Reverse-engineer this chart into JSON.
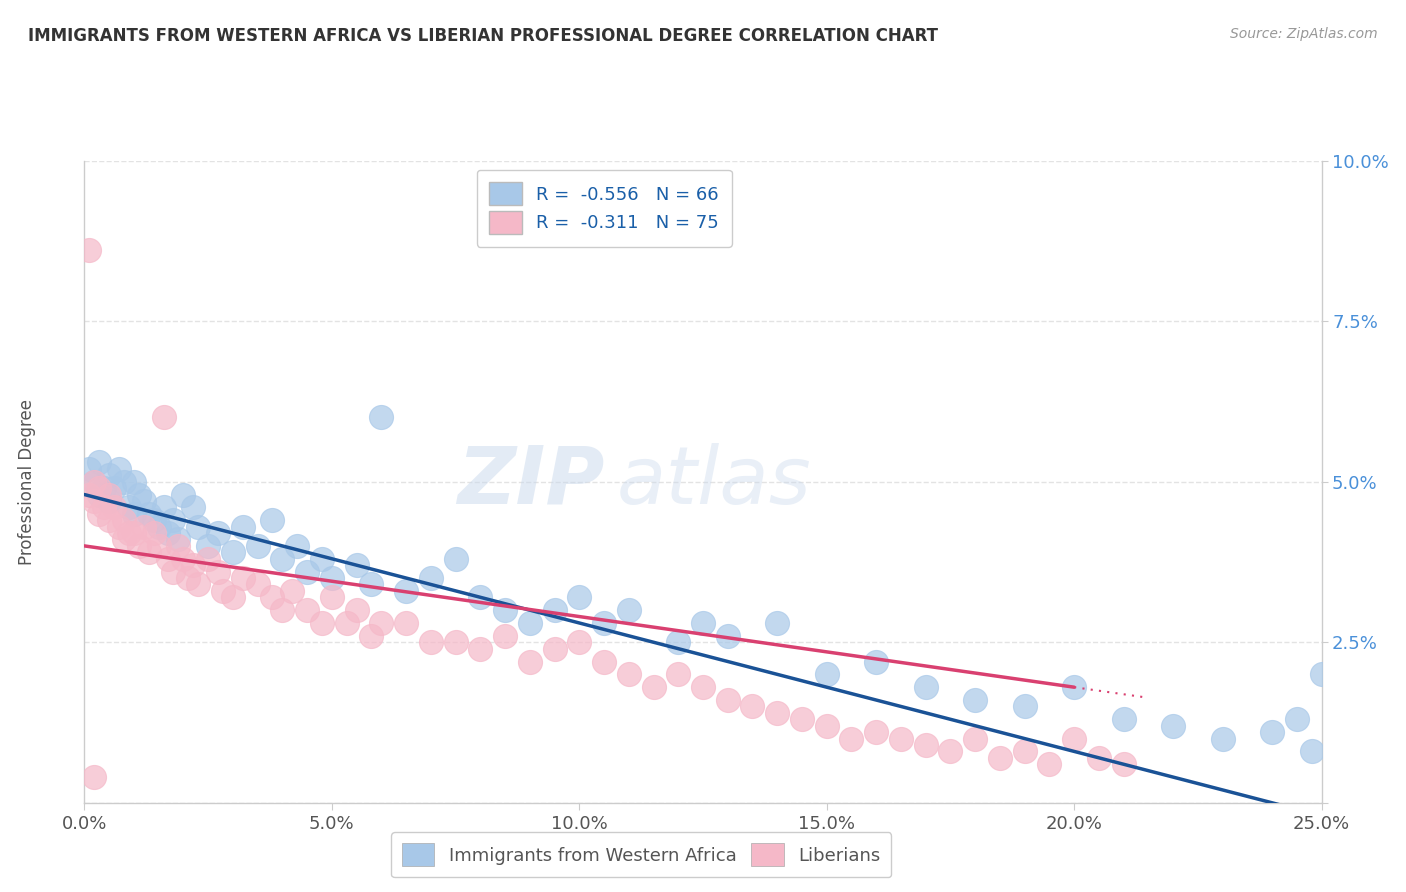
{
  "title": "IMMIGRANTS FROM WESTERN AFRICA VS LIBERIAN PROFESSIONAL DEGREE CORRELATION CHART",
  "source": "Source: ZipAtlas.com",
  "ylabel": "Professional Degree",
  "xlim": [
    0.0,
    0.25
  ],
  "ylim": [
    0.0,
    0.1
  ],
  "xticks": [
    0.0,
    0.05,
    0.1,
    0.15,
    0.2,
    0.25
  ],
  "yticks": [
    0.0,
    0.025,
    0.05,
    0.075,
    0.1
  ],
  "xticklabels": [
    "0.0%",
    "5.0%",
    "10.0%",
    "15.0%",
    "20.0%",
    "25.0%"
  ],
  "yticklabels": [
    "",
    "2.5%",
    "5.0%",
    "7.5%",
    "10.0%"
  ],
  "blue_color": "#a8c8e8",
  "pink_color": "#f5b8c8",
  "blue_line_color": "#1a5296",
  "pink_line_color": "#d94070",
  "blue_r": -0.556,
  "blue_n": 66,
  "pink_r": -0.311,
  "pink_n": 75,
  "legend_label_blue": "Immigrants from Western Africa",
  "legend_label_pink": "Liberians",
  "title_color": "#333333",
  "source_color": "#999999",
  "axis_color": "#cccccc",
  "tick_color": "#555555",
  "ytick_color": "#4a90d9",
  "background_color": "#ffffff",
  "grid_color": "#dddddd",
  "blue_scatter_x": [
    0.001,
    0.002,
    0.003,
    0.003,
    0.004,
    0.005,
    0.005,
    0.006,
    0.007,
    0.008,
    0.009,
    0.01,
    0.01,
    0.011,
    0.012,
    0.013,
    0.014,
    0.015,
    0.016,
    0.017,
    0.018,
    0.019,
    0.02,
    0.022,
    0.023,
    0.025,
    0.027,
    0.03,
    0.032,
    0.035,
    0.038,
    0.04,
    0.043,
    0.045,
    0.048,
    0.05,
    0.055,
    0.058,
    0.06,
    0.065,
    0.07,
    0.075,
    0.08,
    0.085,
    0.09,
    0.095,
    0.1,
    0.105,
    0.11,
    0.12,
    0.125,
    0.13,
    0.14,
    0.15,
    0.16,
    0.17,
    0.18,
    0.19,
    0.2,
    0.21,
    0.22,
    0.23,
    0.24,
    0.245,
    0.248,
    0.25
  ],
  "blue_scatter_y": [
    0.052,
    0.05,
    0.048,
    0.053,
    0.049,
    0.051,
    0.047,
    0.049,
    0.052,
    0.05,
    0.046,
    0.045,
    0.05,
    0.048,
    0.047,
    0.045,
    0.044,
    0.043,
    0.046,
    0.042,
    0.044,
    0.041,
    0.048,
    0.046,
    0.043,
    0.04,
    0.042,
    0.039,
    0.043,
    0.04,
    0.044,
    0.038,
    0.04,
    0.036,
    0.038,
    0.035,
    0.037,
    0.034,
    0.06,
    0.033,
    0.035,
    0.038,
    0.032,
    0.03,
    0.028,
    0.03,
    0.032,
    0.028,
    0.03,
    0.025,
    0.028,
    0.026,
    0.028,
    0.02,
    0.022,
    0.018,
    0.016,
    0.015,
    0.018,
    0.013,
    0.012,
    0.01,
    0.011,
    0.013,
    0.008,
    0.02
  ],
  "pink_scatter_x": [
    0.001,
    0.001,
    0.002,
    0.002,
    0.003,
    0.003,
    0.004,
    0.005,
    0.005,
    0.006,
    0.007,
    0.008,
    0.008,
    0.009,
    0.01,
    0.011,
    0.012,
    0.013,
    0.014,
    0.015,
    0.016,
    0.017,
    0.018,
    0.019,
    0.02,
    0.021,
    0.022,
    0.023,
    0.025,
    0.027,
    0.028,
    0.03,
    0.032,
    0.035,
    0.038,
    0.04,
    0.042,
    0.045,
    0.048,
    0.05,
    0.053,
    0.055,
    0.058,
    0.06,
    0.065,
    0.07,
    0.075,
    0.08,
    0.085,
    0.09,
    0.095,
    0.1,
    0.105,
    0.11,
    0.115,
    0.12,
    0.125,
    0.13,
    0.135,
    0.14,
    0.145,
    0.15,
    0.155,
    0.16,
    0.165,
    0.17,
    0.175,
    0.18,
    0.185,
    0.19,
    0.195,
    0.2,
    0.205,
    0.21,
    0.002
  ],
  "pink_scatter_y": [
    0.086,
    0.048,
    0.047,
    0.05,
    0.045,
    0.049,
    0.046,
    0.044,
    0.048,
    0.046,
    0.043,
    0.044,
    0.041,
    0.042,
    0.042,
    0.04,
    0.043,
    0.039,
    0.042,
    0.04,
    0.06,
    0.038,
    0.036,
    0.04,
    0.038,
    0.035,
    0.037,
    0.034,
    0.038,
    0.036,
    0.033,
    0.032,
    0.035,
    0.034,
    0.032,
    0.03,
    0.033,
    0.03,
    0.028,
    0.032,
    0.028,
    0.03,
    0.026,
    0.028,
    0.028,
    0.025,
    0.025,
    0.024,
    0.026,
    0.022,
    0.024,
    0.025,
    0.022,
    0.02,
    0.018,
    0.02,
    0.018,
    0.016,
    0.015,
    0.014,
    0.013,
    0.012,
    0.01,
    0.011,
    0.01,
    0.009,
    0.008,
    0.01,
    0.007,
    0.008,
    0.006,
    0.01,
    0.007,
    0.006,
    0.004
  ],
  "watermark_zip": "ZIP",
  "watermark_atlas": "atlas"
}
